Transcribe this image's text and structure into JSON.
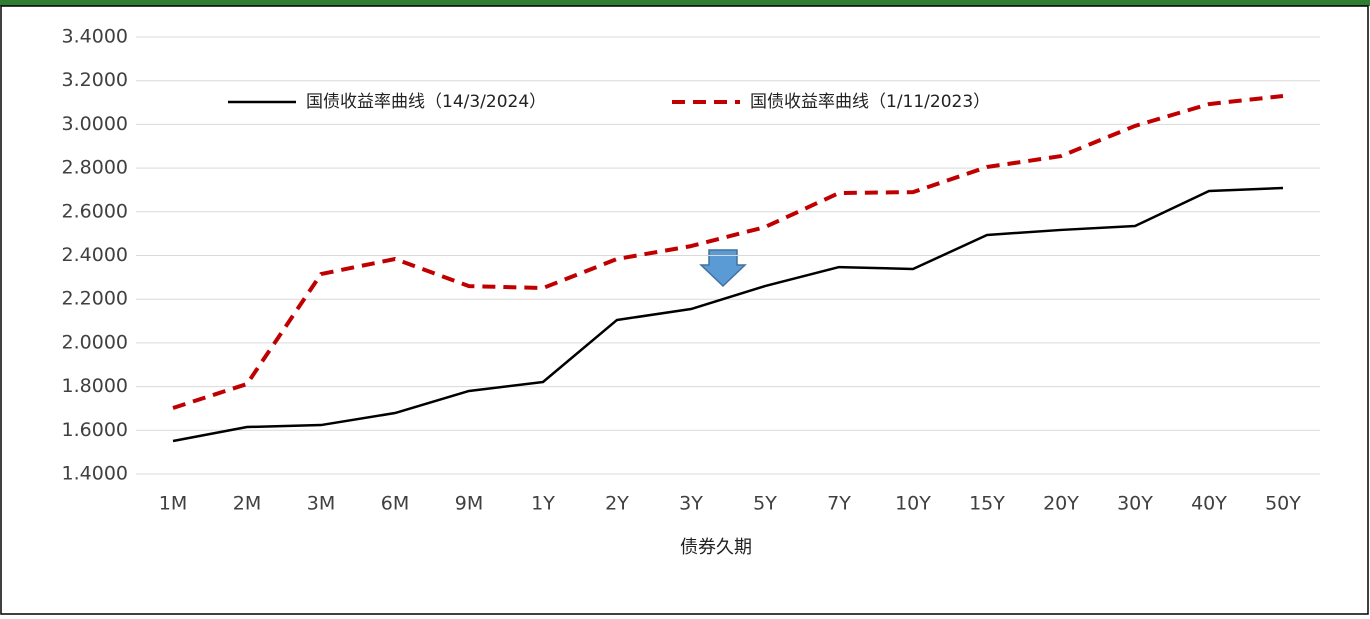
{
  "chart_data": {
    "type": "line",
    "categories": [
      "1M",
      "2M",
      "3M",
      "6M",
      "9M",
      "1Y",
      "2Y",
      "3Y",
      "5Y",
      "7Y",
      "10Y",
      "15Y",
      "20Y",
      "30Y",
      "40Y",
      "50Y"
    ],
    "series": [
      {
        "name": "国债收益率曲线（14/3/2024）",
        "color": "#000000",
        "dashed": false,
        "values": [
          1.551,
          1.615,
          1.624,
          1.679,
          1.78,
          1.821,
          2.105,
          2.155,
          2.26,
          2.347,
          2.338,
          2.494,
          2.517,
          2.535,
          2.695,
          2.709
        ]
      },
      {
        "name": "国债收益率曲线（1/11/2023）",
        "color": "#c00000",
        "dashed": true,
        "values": [
          1.702,
          1.812,
          2.315,
          2.384,
          2.26,
          2.251,
          2.384,
          2.443,
          2.53,
          2.686,
          2.69,
          2.805,
          2.855,
          2.993,
          3.093,
          3.13
        ]
      }
    ],
    "xlabel": "债券久期",
    "ylim": [
      1.4,
      3.4
    ],
    "yticks": [
      {
        "value": 1.4,
        "label": "1.4000"
      },
      {
        "value": 1.6,
        "label": "1.6000"
      },
      {
        "value": 1.8,
        "label": "1.8000"
      },
      {
        "value": 2.0,
        "label": "2.0000"
      },
      {
        "value": 2.2,
        "label": "2.2000"
      },
      {
        "value": 2.4,
        "label": "2.4000"
      },
      {
        "value": 2.6,
        "label": "2.6000"
      },
      {
        "value": 2.8,
        "label": "2.8000"
      },
      {
        "value": 3.0,
        "label": "3.0000"
      },
      {
        "value": 3.2,
        "label": "3.2000"
      },
      {
        "value": 3.4,
        "label": "3.4000"
      }
    ],
    "grid": true
  }
}
